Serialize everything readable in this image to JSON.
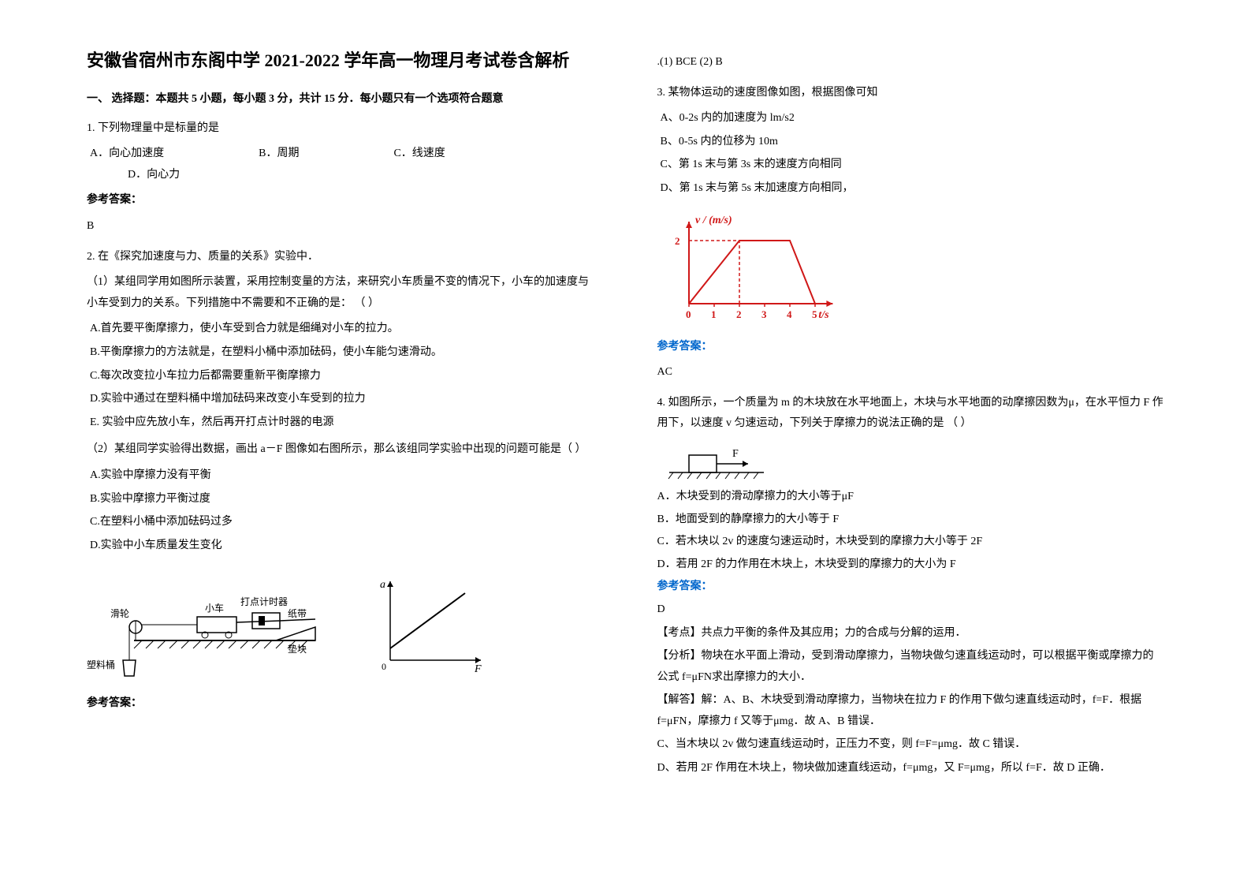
{
  "title": "安徽省宿州市东阁中学 2021-2022 学年高一物理月考试卷含解析",
  "section1_header": "一、 选择题：本题共 5 小题，每小题 3 分，共计 15 分．每小题只有一个选项符合题意",
  "q1": {
    "stem": "1. 下列物理量中是标量的是",
    "optA": "A．向心加速度",
    "optB": "B．周期",
    "optC": "C．线速度",
    "optD": "D．向心力",
    "ans_label": "参考答案：",
    "ans": "B"
  },
  "q2": {
    "stem": "2. 在《探究加速度与力、质量的关系》实验中．",
    "p1": "（1）某组同学用如图所示装置，采用控制变量的方法，来研究小车质量不变的情况下，小车的加速度与小车受到力的关系。下列措施中不需要和不正确的是： （    ）",
    "pA": "A.首先要平衡摩擦力，使小车受到合力就是细绳对小车的拉力。",
    "pB": "B.平衡摩擦力的方法就是，在塑料小桶中添加砝码，使小车能匀速滑动。",
    "pC": "C.每次改变拉小车拉力后都需要重新平衡摩擦力",
    "pD": "D.实验中通过在塑料桶中增加砝码来改变小车受到的拉力",
    "pE": "E. 实验中应先放小车，然后再开打点计时器的电源",
    "p2": "（2）某组同学实验得出数据，画出 a－F 图像如右图所示，那么该组同学实验中出现的问题可能是（   ）",
    "p2A": "A.实验中摩擦力没有平衡",
    "p2B": "B.实验中摩擦力平衡过度",
    "p2C": "C.在塑料小桶中添加砝码过多",
    "p2D": "D.实验中小车质量发生变化",
    "ans_label": "参考答案：",
    "ans": ".(1)  BCE       (2)   B",
    "fig": {
      "labels": {
        "car": "小车",
        "timer": "打点计时器",
        "tape": "纸带",
        "block": "垫块",
        "pulley": "滑轮",
        "bucket": "塑料桶"
      },
      "stroke": "#000000",
      "graph": {
        "xlabel": "F",
        "ylabel": "a",
        "line_color": "#000000"
      }
    }
  },
  "q3": {
    "stem": "3. 某物体运动的速度图像如图，根据图像可知",
    "optA": " A、0-2s 内的加速度为 lm/s2",
    "optB": " B、0-5s 内的位移为 10m",
    "optC": " C、第 1s 末与第 3s 末的速度方向相同",
    "optD": " D、第 1s 末与第 5s 末加速度方向相同，",
    "chart": {
      "type": "line",
      "xlabel": "t/s",
      "ylabel": "v / (m/s)",
      "xlim": [
        0,
        5.5
      ],
      "ylim": [
        0,
        2.5
      ],
      "xticks": [
        0,
        1,
        2,
        3,
        4,
        5
      ],
      "yticks": [
        2
      ],
      "points": [
        [
          0,
          0
        ],
        [
          2,
          2
        ],
        [
          4,
          2
        ],
        [
          5,
          0
        ]
      ],
      "line_color": "#d01818",
      "axis_color": "#d01818",
      "text_color": "#d01818",
      "dash_color": "#d01818",
      "line_width": 2
    },
    "ans_label": "参考答案：",
    "ans": "AC"
  },
  "q4": {
    "stem": "4. 如图所示，一个质量为 m 的木块放在水平地面上，木块与水平地面的动摩擦因数为μ，在水平恒力 F 作用下，以速度 v 匀速运动，下列关于摩擦力的说法正确的是 （     ）",
    "fig_label": "F",
    "optA": "A．木块受到的滑动摩擦力的大小等于μF",
    "optB": "B．地面受到的静摩擦力的大小等于 F",
    "optC": "C．若木块以 2v 的速度匀速运动时，木块受到的摩擦力大小等于 2F",
    "optD": "D．若用 2F 的力作用在木块上，木块受到的摩擦力的大小为 F",
    "ans_label": "参考答案：",
    "ans": "D",
    "sol_kd": "【考点】共点力平衡的条件及其应用；力的合成与分解的运用．",
    "sol_fx": "【分析】物块在水平面上滑动，受到滑动摩擦力，当物块做匀速直线运动时，可以根据平衡或摩擦力的公式 f=μFN求出摩擦力的大小．",
    "sol_jd1": "【解答】解：A、B、木块受到滑动摩擦力，当物块在拉力 F 的作用下做匀速直线运动时，f=F．根据 f=μFN，摩擦力 f 又等于μmg．故 A、B 错误．",
    "sol_jd2": "C、当木块以 2v 做匀速直线运动时，正压力不变，则 f=F=μmg．故 C 错误．",
    "sol_jd3": "D、若用 2F 作用在木块上，物块做加速直线运动，f=μmg，又 F=μmg，所以 f=F．故 D 正确．"
  },
  "colors": {
    "text": "#000000",
    "blue": "#0066cc",
    "bg": "#ffffff"
  }
}
